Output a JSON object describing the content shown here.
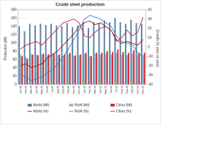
{
  "chart_data": {
    "type": "bar",
    "title": "Crude steel production",
    "y_label": "Production (Mt)",
    "y2_label": "Growth (% year on year)",
    "categories": [
      "Jan-09",
      "Feb-09",
      "Mar-09",
      "Apr-09",
      "May-09",
      "Jun-09",
      "Jul-09",
      "Aug-09",
      "Sep-09",
      "Oct-09",
      "Nov-09",
      "Dec-09",
      "Jan-10",
      "Feb-10",
      "Mar-10",
      "Apr-10",
      "May-10",
      "Jun-10",
      "Jul-10",
      "Aug-10",
      "Sep-10",
      "Oct-10",
      "Nov-10",
      "Dec-10"
    ],
    "series": [
      {
        "name": "World (Mt)",
        "color": "#5b84a8",
        "kind": "bar",
        "values": [
          140,
          128,
          146,
          142,
          146,
          143,
          146,
          142,
          140,
          148,
          138,
          142,
          150,
          136,
          150,
          148,
          154,
          150,
          160,
          150,
          146,
          156,
          148,
          146
        ]
      },
      {
        "name": "RoW (Mt)",
        "color": "#9cb8d0",
        "kind": "bar",
        "values": [
          72,
          66,
          74,
          72,
          72,
          70,
          72,
          70,
          68,
          72,
          68,
          70,
          74,
          68,
          74,
          72,
          74,
          72,
          76,
          72,
          70,
          74,
          72,
          70
        ]
      },
      {
        "name": "China (Mt)",
        "color": "#d42a2a",
        "kind": "bar",
        "values": [
          68,
          62,
          72,
          70,
          74,
          73,
          74,
          72,
          72,
          76,
          70,
          72,
          76,
          68,
          76,
          76,
          80,
          78,
          84,
          78,
          76,
          82,
          76,
          76
        ]
      },
      {
        "name": "World (%)",
        "color": "#8b1a1a",
        "kind": "line",
        "axis": "y2",
        "values": [
          -20,
          -18,
          -22,
          -20,
          -18,
          -12,
          -8,
          -4,
          2,
          8,
          14,
          22,
          26,
          28,
          24,
          26,
          22,
          18,
          8,
          4,
          6,
          4,
          2,
          8
        ]
      },
      {
        "name": "RoW (%)",
        "color": "#3a7fc0",
        "kind": "line",
        "axis": "y2",
        "values": [
          -30,
          -32,
          -36,
          -34,
          -32,
          -28,
          -24,
          -18,
          -10,
          -2,
          8,
          18,
          30,
          34,
          32,
          30,
          26,
          22,
          12,
          6,
          4,
          2,
          -6,
          -10
        ]
      },
      {
        "name": "China (%)",
        "color": "#c02040",
        "kind": "line",
        "axis": "y2",
        "values": [
          -2,
          2,
          4,
          6,
          2,
          8,
          14,
          20,
          26,
          28,
          30,
          26,
          12,
          10,
          16,
          20,
          22,
          18,
          6,
          10,
          18,
          12,
          16,
          32
        ]
      }
    ],
    "ylim": [
      0,
      180
    ],
    "yticks": [
      0,
      20,
      40,
      60,
      80,
      100,
      120,
      140,
      160,
      180
    ],
    "y2lim": [
      -40,
      40
    ],
    "y2ticks": [
      -40,
      -30,
      -20,
      -10,
      0,
      10,
      20,
      30,
      40
    ]
  }
}
